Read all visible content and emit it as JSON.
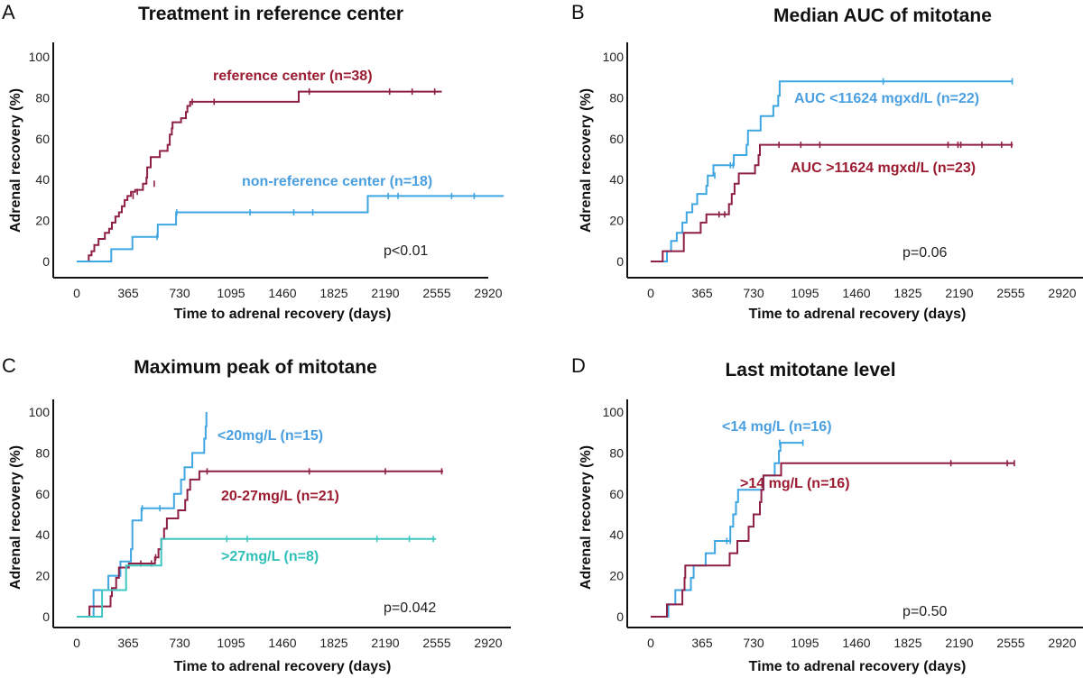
{
  "colors": {
    "red": "#8e1f45",
    "red_label": "#9b1b30",
    "blue": "#3ea6e2",
    "blue_label": "#4a9fe0",
    "teal": "#3ec7c2",
    "teal_label": "#2fc0b8"
  },
  "chart_data": [
    {
      "panel": "A",
      "type": "line",
      "subtype": "kaplan-meier-step",
      "title": "Treatment in reference center",
      "xlabel": "Time to adrenal recovery (days)",
      "ylabel": "Adrenal recovery (%)",
      "xticks": [
        0,
        365,
        730,
        1095,
        1460,
        1825,
        2190,
        2555,
        2920
      ],
      "yticks": [
        0,
        20,
        40,
        60,
        80,
        100
      ],
      "xlim": [
        -270,
        3030
      ],
      "ylim": [
        0,
        100
      ],
      "annotation": "p<0.01",
      "series": [
        {
          "name": "reference center (n=38)",
          "color": "red",
          "label_color": "red_label",
          "steps": [
            [
              0,
              0
            ],
            [
              85,
              3
            ],
            [
              105,
              5
            ],
            [
              125,
              8
            ],
            [
              155,
              11
            ],
            [
              200,
              14
            ],
            [
              230,
              16
            ],
            [
              250,
              19
            ],
            [
              275,
              22
            ],
            [
              300,
              24
            ],
            [
              320,
              27
            ],
            [
              340,
              30
            ],
            [
              360,
              32
            ],
            [
              385,
              34
            ],
            [
              415,
              35
            ],
            [
              470,
              38
            ],
            [
              495,
              41
            ],
            [
              500,
              46
            ],
            [
              525,
              51
            ],
            [
              590,
              54
            ],
            [
              645,
              57
            ],
            [
              660,
              62
            ],
            [
              675,
              65
            ],
            [
              680,
              68
            ],
            [
              740,
              70
            ],
            [
              775,
              73
            ],
            [
              785,
              76
            ],
            [
              805,
              78
            ],
            [
              1575,
              83
            ]
          ],
          "end": 2590,
          "censors": [
            [
              400,
              32
            ],
            [
              430,
              34
            ],
            [
              550,
              38
            ],
            [
              820,
              78
            ],
            [
              975,
              78
            ],
            [
              1650,
              83
            ],
            [
              2220,
              83
            ],
            [
              2380,
              83
            ],
            [
              2540,
              83
            ]
          ]
        },
        {
          "name": "non-reference center (n=18)",
          "color": "blue",
          "label_color": "blue_label",
          "steps": [
            [
              0,
              0
            ],
            [
              245,
              6
            ],
            [
              395,
              12
            ],
            [
              575,
              18
            ],
            [
              705,
              24
            ],
            [
              2065,
              32
            ]
          ],
          "end": 3030,
          "censors": [
            [
              570,
              12
            ],
            [
              710,
              24
            ],
            [
              1230,
              24
            ],
            [
              1540,
              24
            ],
            [
              1675,
              24
            ],
            [
              2210,
              32
            ],
            [
              2280,
              32
            ],
            [
              2660,
              32
            ],
            [
              2820,
              32
            ]
          ]
        }
      ]
    },
    {
      "panel": "B",
      "type": "line",
      "subtype": "kaplan-meier-step",
      "title": "Median AUC of mitotane",
      "xlabel": "Time to adrenal recovery (days)",
      "ylabel": "Adrenal recovery (%)",
      "xticks": [
        0,
        365,
        730,
        1095,
        1460,
        1825,
        2190,
        2555,
        2920
      ],
      "yticks": [
        0,
        20,
        40,
        60,
        80,
        100
      ],
      "xlim": [
        -270,
        3030
      ],
      "ylim": [
        0,
        100
      ],
      "annotation": "p=0.06",
      "series": [
        {
          "name": "AUC <11624 mgxd/L (n=22)",
          "color": "blue",
          "label_color": "blue_label",
          "steps": [
            [
              0,
              0
            ],
            [
              115,
              5
            ],
            [
              145,
              10
            ],
            [
              185,
              14
            ],
            [
              225,
              19
            ],
            [
              255,
              24
            ],
            [
              295,
              28
            ],
            [
              330,
              33
            ],
            [
              395,
              37
            ],
            [
              405,
              42
            ],
            [
              445,
              47
            ],
            [
              590,
              52
            ],
            [
              680,
              57
            ],
            [
              690,
              64
            ],
            [
              780,
              71
            ],
            [
              870,
              76
            ],
            [
              905,
              81
            ],
            [
              915,
              88
            ]
          ],
          "end": 2570,
          "censors": [
            [
              455,
              42
            ],
            [
              565,
              47
            ],
            [
              585,
              47
            ],
            [
              1650,
              88
            ],
            [
              2565,
              88
            ]
          ]
        },
        {
          "name": "AUC >11624 mgxd/L (n=23)",
          "color": "red",
          "label_color": "red_label",
          "steps": [
            [
              0,
              0
            ],
            [
              85,
              5
            ],
            [
              235,
              14
            ],
            [
              355,
              19
            ],
            [
              395,
              23
            ],
            [
              555,
              28
            ],
            [
              575,
              33
            ],
            [
              595,
              38
            ],
            [
              625,
              43
            ],
            [
              740,
              47
            ],
            [
              765,
              52
            ],
            [
              775,
              57
            ]
          ],
          "end": 2570,
          "censors": [
            [
              485,
              23
            ],
            [
              525,
              23
            ],
            [
              910,
              57
            ],
            [
              1065,
              57
            ],
            [
              1200,
              57
            ],
            [
              2110,
              57
            ],
            [
              2180,
              57
            ],
            [
              2200,
              57
            ],
            [
              2350,
              57
            ],
            [
              2490,
              57
            ],
            [
              2560,
              57
            ]
          ]
        }
      ]
    },
    {
      "panel": "C",
      "type": "line",
      "subtype": "kaplan-meier-step",
      "title": "Maximum peak of mitotane",
      "xlabel": "Time to adrenal recovery (days)",
      "ylabel": "Adrenal recovery (%)",
      "xticks": [
        0,
        365,
        730,
        1095,
        1460,
        1825,
        2190,
        2555,
        2920
      ],
      "yticks": [
        0,
        20,
        40,
        60,
        80,
        100
      ],
      "xlim": [
        -270,
        3030
      ],
      "ylim": [
        0,
        100
      ],
      "annotation": "p=0.042",
      "series": [
        {
          "name": "<20mg/L (n=15)",
          "color": "blue",
          "label_color": "blue_label",
          "steps": [
            [
              0,
              0
            ],
            [
              120,
              13
            ],
            [
              225,
              20
            ],
            [
              310,
              27
            ],
            [
              385,
              33
            ],
            [
              395,
              47
            ],
            [
              460,
              53
            ],
            [
              690,
              60
            ],
            [
              740,
              67
            ],
            [
              765,
              73
            ],
            [
              820,
              80
            ],
            [
              905,
              87
            ],
            [
              915,
              93
            ],
            [
              920,
              100
            ]
          ],
          "end": 920,
          "censors": [
            [
              465,
              53
            ],
            [
              590,
              53
            ]
          ]
        },
        {
          "name": "20-27mg/L (n=21)",
          "color": "red",
          "label_color": "red_label",
          "steps": [
            [
              0,
              0
            ],
            [
              90,
              5
            ],
            [
              240,
              10
            ],
            [
              250,
              14
            ],
            [
              280,
              19
            ],
            [
              300,
              24
            ],
            [
              370,
              26
            ],
            [
              555,
              29
            ],
            [
              580,
              33
            ],
            [
              600,
              38
            ],
            [
              620,
              43
            ],
            [
              640,
              48
            ],
            [
              720,
              52
            ],
            [
              770,
              57
            ],
            [
              785,
              62
            ],
            [
              805,
              67
            ],
            [
              870,
              71
            ]
          ],
          "end": 2600,
          "censors": [
            [
              455,
              26
            ],
            [
              530,
              26
            ],
            [
              560,
              29
            ],
            [
              925,
              71
            ],
            [
              1650,
              71
            ],
            [
              2190,
              71
            ],
            [
              2590,
              71
            ]
          ]
        },
        {
          "name": ">27mg/L (n=8)",
          "color": "teal",
          "label_color": "teal_label",
          "steps": [
            [
              0,
              0
            ],
            [
              180,
              13
            ],
            [
              350,
              25
            ],
            [
              600,
              38
            ]
          ],
          "end": 2550,
          "censors": [
            [
              1065,
              38
            ],
            [
              1210,
              38
            ],
            [
              2130,
              38
            ],
            [
              2360,
              38
            ],
            [
              2530,
              38
            ]
          ]
        }
      ]
    },
    {
      "panel": "D",
      "type": "line",
      "subtype": "kaplan-meier-step",
      "title": "Last mitotane level",
      "xlabel": "Time to adrenal recovery (days)",
      "ylabel": "Adrenal recovery (%)",
      "xticks": [
        0,
        365,
        730,
        1095,
        1460,
        1825,
        2190,
        2555,
        2920
      ],
      "yticks": [
        0,
        20,
        40,
        60,
        80,
        100
      ],
      "xlim": [
        -270,
        3030
      ],
      "ylim": [
        0,
        100
      ],
      "annotation": "p=0.50",
      "series": [
        {
          "name": "<14 mg/L (n=16)",
          "color": "blue",
          "label_color": "blue_label",
          "steps": [
            [
              0,
              0
            ],
            [
              125,
              6
            ],
            [
              175,
              13
            ],
            [
              285,
              19
            ],
            [
              305,
              25
            ],
            [
              390,
              31
            ],
            [
              455,
              37
            ],
            [
              565,
              44
            ],
            [
              585,
              50
            ],
            [
              605,
              56
            ],
            [
              620,
              62
            ],
            [
              800,
              69
            ],
            [
              880,
              75
            ],
            [
              910,
              81
            ],
            [
              920,
              85
            ]
          ],
          "end": 1080,
          "censors": [
            [
              540,
              37
            ],
            [
              565,
              37
            ],
            [
              915,
              85
            ],
            [
              1080,
              85
            ]
          ]
        },
        {
          "name": ">14 mg/L (n=16)",
          "color": "red",
          "label_color": "red_label",
          "steps": [
            [
              0,
              0
            ],
            [
              115,
              6
            ],
            [
              225,
              13
            ],
            [
              240,
              19
            ],
            [
              245,
              25
            ],
            [
              560,
              31
            ],
            [
              615,
              37
            ],
            [
              695,
              44
            ],
            [
              730,
              50
            ],
            [
              775,
              56
            ],
            [
              785,
              62
            ],
            [
              800,
              69
            ],
            [
              925,
              75
            ]
          ],
          "end": 2580,
          "censors": [
            [
              2130,
              75
            ],
            [
              2530,
              75
            ],
            [
              2580,
              75
            ]
          ]
        }
      ]
    }
  ],
  "panels": [
    {
      "letter": "A",
      "title": "Treatment in reference center",
      "xlabel": "Time to adrenal recovery (days)",
      "ylabel": "Adrenal recovery (%)",
      "pvalue": "p<0.01",
      "labels": [
        "reference center (n=38)",
        "non-reference center (n=18)"
      ]
    },
    {
      "letter": "B",
      "title": "Median AUC of mitotane",
      "xlabel": "Time to adrenal recovery (days)",
      "ylabel": "Adrenal recovery (%)",
      "pvalue": "p=0.06",
      "labels": [
        "AUC <11624 mgxd/L (n=22)",
        "AUC >11624 mgxd/L (n=23)"
      ]
    },
    {
      "letter": "C",
      "title": "Maximum peak of mitotane",
      "xlabel": "Time to adrenal recovery (days)",
      "ylabel": "Adrenal recovery (%)",
      "pvalue": "p=0.042",
      "labels": [
        "<20mg/L (n=15)",
        "20-27mg/L (n=21)",
        ">27mg/L (n=8)"
      ]
    },
    {
      "letter": "D",
      "title": "Last mitotane level",
      "xlabel": "Time to adrenal recovery (days)",
      "ylabel": "Adrenal recovery (%)",
      "pvalue": "p=0.50",
      "labels": [
        "<14 mg/L (n=16)",
        ">14 mg/L (n=16)"
      ]
    }
  ]
}
